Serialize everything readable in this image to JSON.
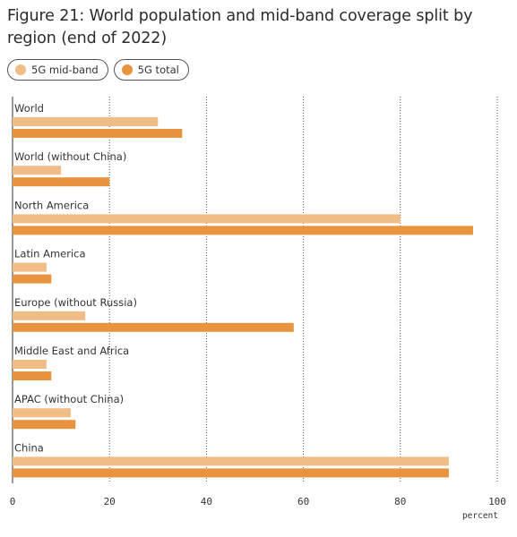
{
  "chart_data": {
    "type": "bar",
    "orientation": "horizontal",
    "title": "Figure 21: World population and mid-band coverage split by region (end of 2022)",
    "categories": [
      "World",
      "World (without China)",
      "North America",
      "Latin America",
      "Europe (without Russia)",
      "Middle East and Africa",
      "APAC (without China)",
      "China"
    ],
    "series": [
      {
        "name": "5G mid-band",
        "color": "#f0bd86",
        "values": [
          30,
          10,
          80,
          7,
          15,
          7,
          12,
          90
        ]
      },
      {
        "name": "5G total",
        "color": "#e8933d",
        "values": [
          35,
          20,
          95,
          8,
          58,
          8,
          13,
          90
        ]
      }
    ],
    "xlim": [
      0,
      100
    ],
    "xticks": [
      0,
      20,
      40,
      60,
      80,
      100
    ],
    "xlabel": "percent",
    "grid": "vertical dotted",
    "legend_position": "top-left"
  }
}
